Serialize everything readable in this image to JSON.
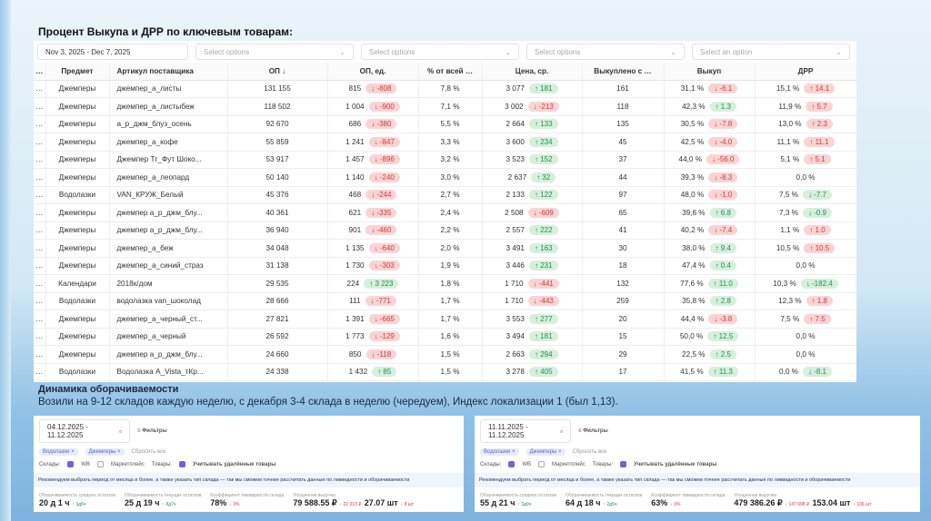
{
  "title": "Процент Выкупа и ДРР по ключевым товарам:",
  "filters": {
    "date": "Nov 3, 2025  -  Dec 7, 2025",
    "sel1": "Select options",
    "sel2": "Select options",
    "sel3": "Select options",
    "sel4": "Select an option"
  },
  "columns": [
    "…",
    "Предмет",
    "Артикул поставщика",
    "ОП ↓",
    "ОП, ед.",
    "% от всей …",
    "Цена, ср.",
    "Выкуплено с …",
    "Выкуп",
    "ДРР"
  ],
  "rows": [
    [
      "Джемперы",
      "джемпер_а_листы",
      "131 155",
      "815",
      "-808",
      "7,8 %",
      "3 077",
      "181",
      "161",
      "31,1 %",
      "-6.1",
      "15,1 %",
      "14.1"
    ],
    [
      "Джемперы",
      "джемпер_а_листыбеж",
      "118 502",
      "1 004",
      "-900",
      "7,1 %",
      "3 002",
      "-213",
      "118",
      "42,3 %",
      "1.3",
      "11,9 %",
      "5.7"
    ],
    [
      "Джемперы",
      "а_р_джм_блуз_осень",
      "92 670",
      "686",
      "-380",
      "5,5 %",
      "2 664",
      "133",
      "135",
      "30,5 %",
      "-7.8",
      "13,0 %",
      "2.3"
    ],
    [
      "Джемперы",
      "джемпер_а_кофе",
      "55 859",
      "1 241",
      "-847",
      "3,3 %",
      "3 600",
      "234",
      "45",
      "42,5 %",
      "-4.0",
      "11,1 %",
      "11.1"
    ],
    [
      "Джемперы",
      "Джемпер Тг_Фут Шоко...",
      "53 917",
      "1 457",
      "-896",
      "3,2 %",
      "3 523",
      "152",
      "37",
      "44,0 %",
      "-56.0",
      "5,1 %",
      "5.1"
    ],
    [
      "Джемперы",
      "джемпер_а_леопард",
      "50 140",
      "1 140",
      "-240",
      "3,0 %",
      "2 637",
      "32",
      "44",
      "39,3 %",
      "-8.3",
      "0,0 %",
      ""
    ],
    [
      "Водолазки",
      "VAN_КРУЖ_Белый",
      "45 376",
      "468",
      "-244",
      "2,7 %",
      "2 133",
      "122",
      "97",
      "48,0 %",
      "-1.0",
      "7,5 %",
      "-7.7"
    ],
    [
      "Джемперы",
      "джемпер а_р_джм_блу...",
      "40 361",
      "621",
      "-335",
      "2,4 %",
      "2 508",
      "-609",
      "65",
      "39,6 %",
      "6.8",
      "7,3 %",
      "-0.9"
    ],
    [
      "Джемперы",
      "джемпер а_р_джм_блу...",
      "36 940",
      "901",
      "-460",
      "2,2 %",
      "2 557",
      "222",
      "41",
      "40,2 %",
      "-7.4",
      "1,1 %",
      "1.0"
    ],
    [
      "Джемперы",
      "джемпер_а_беж",
      "34 048",
      "1 135",
      "-640",
      "2,0 %",
      "3 491",
      "163",
      "30",
      "38,0 %",
      "9.4",
      "10,5 %",
      "10.5"
    ],
    [
      "Джемперы",
      "джемпер_а_синий_страз",
      "31 138",
      "1 730",
      "-303",
      "1,9 %",
      "3 446",
      "231",
      "18",
      "47,4 %",
      "0.4",
      "0,0 %",
      ""
    ],
    [
      "Календари",
      "2018к/дом",
      "29 535",
      "224",
      "3 223",
      "1,8 %",
      "1 710",
      "-441",
      "132",
      "77,6 %",
      "11.0",
      "10,3 %",
      "-182.4"
    ],
    [
      "Водолазки",
      "водолазка van_шоколад",
      "28 666",
      "111",
      "-771",
      "1,7 %",
      "1 710",
      "-443",
      "259",
      "35,8 %",
      "2.8",
      "12,3 %",
      "1.8"
    ],
    [
      "Джемперы",
      "джемпер_а_черный_ст...",
      "27 821",
      "1 391",
      "-665",
      "1,7 %",
      "3 553",
      "277",
      "20",
      "44,4 %",
      "-3.8",
      "7,5 %",
      "7.5"
    ],
    [
      "Джемперы",
      "джемпер_а_черный",
      "26 592",
      "1 773",
      "-129",
      "1,6 %",
      "3 494",
      "181",
      "15",
      "50,0 %",
      "12.5",
      "0,0 %",
      ""
    ],
    [
      "Джемперы",
      "джемпер а_р_джм_блу...",
      "24 660",
      "850",
      "-118",
      "1,5 %",
      "2 663",
      "294",
      "29",
      "22,5 %",
      "2.5",
      "0,0 %",
      ""
    ],
    [
      "Водолазки",
      "Водолазка A_Vista_тКр...",
      "24 338",
      "1 432",
      "85",
      "1,5 %",
      "3 278",
      "405",
      "17",
      "41,5 %",
      "11.3",
      "0,0 %",
      "-8.1"
    ]
  ],
  "section": {
    "subtitle": "Динамика оборачиваемости",
    "note": "Возили на 9-12 складов каждую неделю, с декабря 3-4 склада в неделю (чередуем), Индекс локализации 1 (был 1,13)."
  },
  "dash_common": {
    "filters_label": "Фильтры",
    "chip1": "Водолазки ×",
    "chip2": "Джемперы ×",
    "reset": "Сбросить все",
    "warehouses": "Склады:",
    "wb": "WB",
    "mp": "Маркетплейс",
    "goods": "Товары:",
    "deleted": "Учитывать удалённые товары",
    "rec": "Рекомендуем выбрать период от месяца и более, а также указать тип склада — так мы сможем точнее рассчитать данные по ликвидности и оборачиваемости",
    "k1": "Оборачиваемость средних остатков",
    "k2": "Оборачиваемость текущих остатков",
    "k3": "Коэффициент ликвидности склада",
    "k4": "Упущенная выручка"
  },
  "dash_left": {
    "date": "04.12.2025 - 11.12.2025",
    "v1": "20 д 1 ч",
    "d1": "↑ 3д5ч",
    "v2": "25 д 19 ч",
    "d2": "↑ 8д7ч",
    "v3": "78%",
    "d3": "↓ 3%",
    "v4": "79 588.55 ₽",
    "d4": "↓ 22 013 ₽",
    "v5": "27.07 шт",
    "d5": "↓ 8 шт"
  },
  "dash_right": {
    "date": "11.11.2025 - 11.12.2025",
    "v1": "55 д 21 ч",
    "d1": "↑ 3д9ч",
    "v2": "64 д 18 ч",
    "d2": "↑ 2д5ч",
    "v3": "63%",
    "d3": "↓ 3%",
    "v4": "479 386.26 ₽",
    "d4": "↓ 147 698 ₽",
    "v5": "153.04 шт",
    "d5": "↓ 106 шт"
  }
}
